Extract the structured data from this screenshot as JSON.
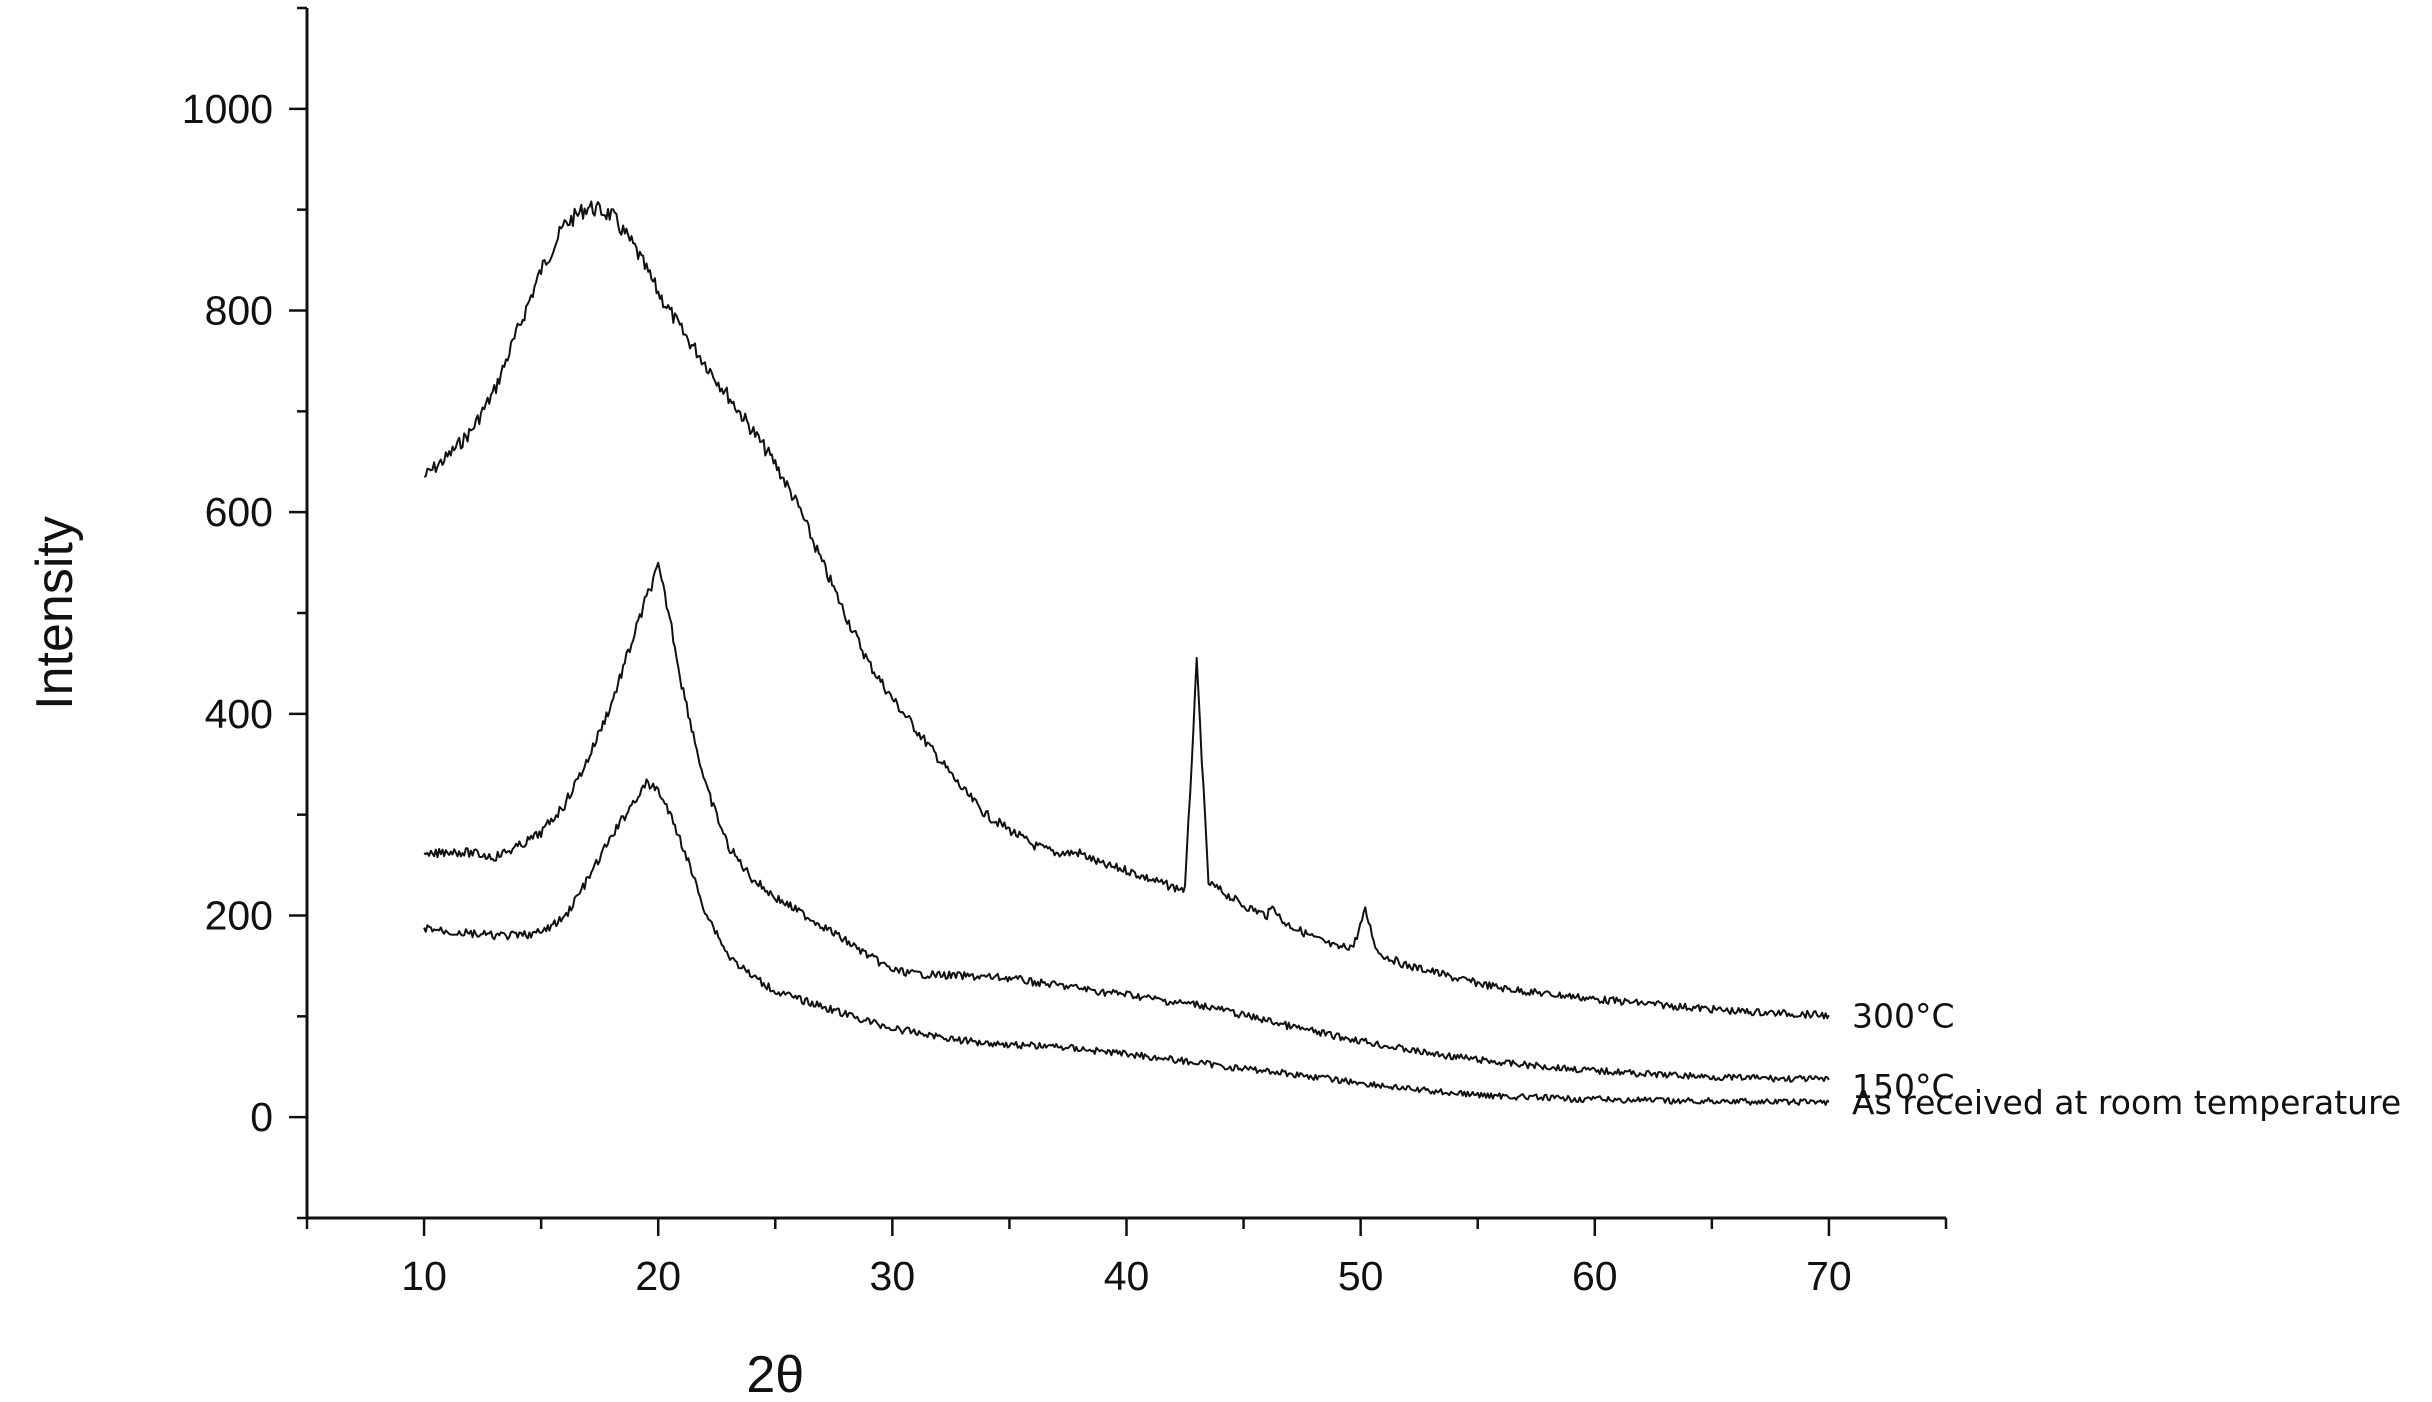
{
  "chart_data": {
    "type": "line",
    "title": "",
    "xlabel": "2θ",
    "ylabel": "Intensity",
    "xlim": [
      5,
      75
    ],
    "ylim": [
      -100,
      1100
    ],
    "x_ticks": [
      10,
      20,
      30,
      40,
      50,
      60,
      70
    ],
    "y_ticks": [
      0,
      200,
      400,
      600,
      800,
      1000
    ],
    "grid": false,
    "legend": "none",
    "colors": {
      "line": "#111111",
      "axis": "#111111"
    },
    "series": [
      {
        "name": "300°C",
        "x": [
          10,
          11,
          12,
          13,
          14,
          15,
          16,
          17,
          18,
          19,
          20,
          21,
          22,
          23,
          24,
          25,
          26,
          27,
          28,
          29,
          30,
          31,
          32,
          33,
          34,
          35,
          36,
          37,
          38,
          39,
          40,
          41,
          42,
          42.5,
          43,
          43.5,
          44,
          45,
          46,
          46.3,
          46.6,
          47,
          48,
          49,
          49.7,
          50.2,
          50.7,
          51,
          52,
          53,
          54,
          55,
          56,
          57,
          58,
          59,
          60,
          61,
          62,
          63,
          64,
          65,
          66,
          67,
          68,
          69,
          70
        ],
        "y": [
          635,
          655,
          680,
          720,
          780,
          840,
          885,
          903,
          895,
          862,
          818,
          780,
          748,
          715,
          682,
          648,
          605,
          550,
          498,
          450,
          415,
          385,
          355,
          325,
          300,
          285,
          270,
          262,
          262,
          250,
          245,
          236,
          228,
          226,
          450,
          232,
          225,
          210,
          200,
          210,
          195,
          190,
          178,
          168,
          170,
          205,
          165,
          160,
          150,
          145,
          138,
          133,
          128,
          125,
          122,
          120,
          117,
          115,
          113,
          111,
          109,
          107,
          105,
          104,
          103,
          102,
          101
        ]
      },
      {
        "name": "150°C",
        "x": [
          10,
          11,
          12,
          13,
          14,
          15,
          16,
          17,
          18,
          19,
          19.5,
          20,
          20.5,
          21,
          22,
          23,
          24,
          25,
          26,
          27,
          28,
          29,
          30,
          31,
          32,
          33,
          34,
          35,
          36,
          37,
          38,
          39,
          40,
          41,
          42,
          43,
          44,
          45,
          46,
          47,
          48,
          49,
          50,
          51,
          52,
          53,
          54,
          55,
          56,
          57,
          58,
          59,
          60,
          61,
          62,
          63,
          64,
          65,
          66,
          67,
          68,
          69,
          70
        ],
        "y": [
          258,
          264,
          262,
          258,
          268,
          282,
          310,
          355,
          410,
          480,
          515,
          545,
          495,
          430,
          330,
          268,
          237,
          218,
          204,
          190,
          175,
          160,
          146,
          142,
          141,
          140,
          139,
          138,
          134,
          131,
          128,
          124,
          122,
          118,
          114,
          112,
          107,
          101,
          96,
          90,
          85,
          80,
          76,
          71,
          67,
          63,
          60,
          57,
          54,
          52,
          50,
          48,
          46,
          45,
          43,
          42,
          41,
          40,
          39,
          39,
          38,
          38,
          37
        ]
      },
      {
        "name": "As received at room temperature",
        "x": [
          10,
          11,
          12,
          13,
          14,
          15,
          16,
          17,
          18,
          19,
          19.5,
          20,
          20.5,
          21,
          22,
          23,
          24,
          25,
          26,
          27,
          28,
          29,
          30,
          31,
          32,
          33,
          34,
          35,
          36,
          37,
          38,
          39,
          40,
          41,
          42,
          43,
          44,
          45,
          46,
          47,
          48,
          49,
          50,
          51,
          52,
          53,
          54,
          55,
          56,
          57,
          58,
          59,
          60,
          61,
          62,
          63,
          64,
          65,
          66,
          67,
          68,
          69,
          70
        ],
        "y": [
          188,
          184,
          182,
          180,
          180,
          183,
          198,
          236,
          278,
          315,
          330,
          325,
          300,
          272,
          205,
          160,
          140,
          125,
          117,
          110,
          102,
          95,
          88,
          84,
          80,
          76,
          74,
          72,
          71,
          70,
          68,
          65,
          63,
          60,
          57,
          54,
          51,
          48,
          46,
          43,
          40,
          37,
          34,
          31,
          28,
          26,
          24,
          22,
          21,
          20,
          19,
          18,
          18,
          17,
          17,
          16,
          16,
          16,
          16,
          15,
          15,
          15,
          15
        ]
      }
    ]
  }
}
